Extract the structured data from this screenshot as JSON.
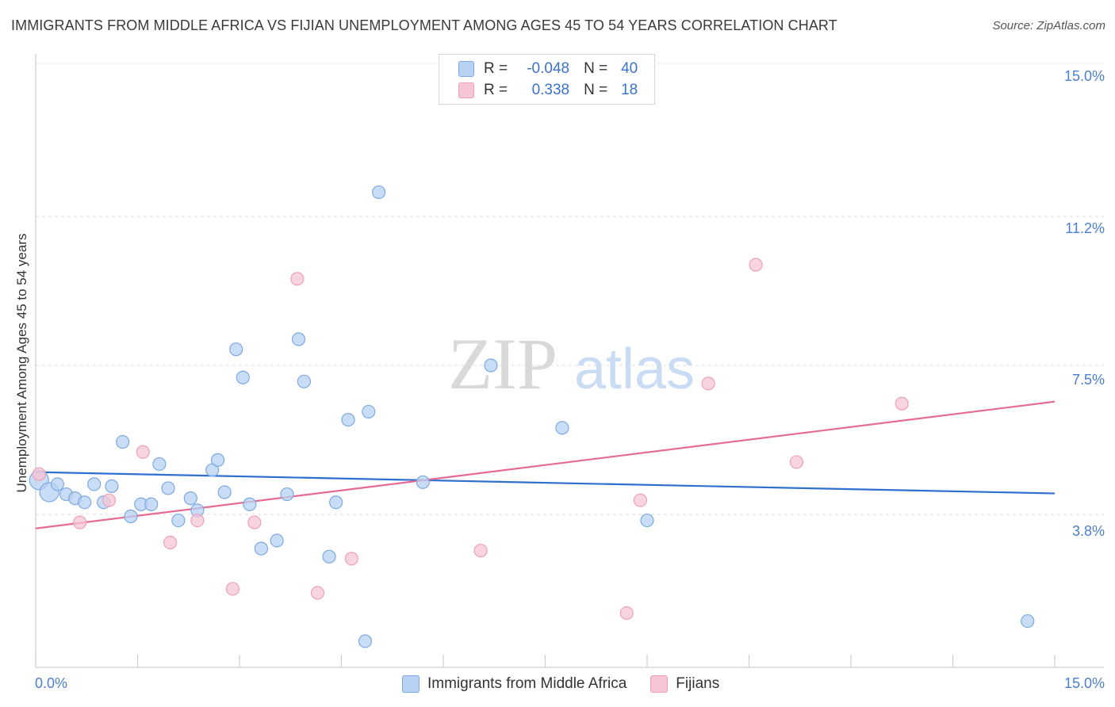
{
  "header": {
    "title": "IMMIGRANTS FROM MIDDLE AFRICA VS FIJIAN UNEMPLOYMENT AMONG AGES 45 TO 54 YEARS CORRELATION CHART",
    "source": "Source: ZipAtlas.com"
  },
  "watermark": {
    "zip": "ZIP",
    "atlas": "atlas"
  },
  "legend": {
    "series1": {
      "r_label": "R =",
      "r_value": "-0.048",
      "n_label": "N =",
      "n_value": "40"
    },
    "series2": {
      "r_label": "R =",
      "r_value": "0.338",
      "n_label": "N =",
      "n_value": "18"
    }
  },
  "bottom_legend": {
    "series1": "Immigrants from Middle Africa",
    "series2": "Fijians"
  },
  "colors": {
    "blue_fill": "#b7d2f3",
    "blue_stroke": "#7ea9e1",
    "blue_line": "#2f6fcf",
    "pink_fill": "#f6c6d6",
    "pink_stroke": "#eea0ba",
    "pink_line": "#e56a96",
    "tick_text": "#4a7fcf"
  },
  "chart_data": {
    "type": "scatter",
    "title": "IMMIGRANTS FROM MIDDLE AFRICA VS FIJIAN UNEMPLOYMENT AMONG AGES 45 TO 54 YEARS CORRELATION CHART",
    "xlabel": "",
    "ylabel": "Unemployment Among Ages 45 to 54 years",
    "xlim": [
      0,
      15
    ],
    "ylim": [
      0,
      15
    ],
    "x_tick_labels": [
      "0.0%",
      "15.0%"
    ],
    "y_ticks": [
      3.8,
      7.5,
      11.2,
      15.0
    ],
    "y_tick_labels": [
      "3.8%",
      "7.5%",
      "11.2%",
      "15.0%"
    ],
    "grid": true,
    "series": [
      {
        "name": "Immigrants from Middle Africa",
        "r": -0.048,
        "n": 40,
        "trend": {
          "x": [
            0,
            15
          ],
          "y": [
            4.85,
            4.32
          ]
        },
        "points": [
          {
            "x": 0.05,
            "y": 4.65,
            "big": true
          },
          {
            "x": 0.2,
            "y": 4.35,
            "big": true
          },
          {
            "x": 0.32,
            "y": 4.55
          },
          {
            "x": 0.45,
            "y": 4.3
          },
          {
            "x": 0.58,
            "y": 4.2
          },
          {
            "x": 0.72,
            "y": 4.1
          },
          {
            "x": 0.86,
            "y": 4.55
          },
          {
            "x": 1.0,
            "y": 4.1
          },
          {
            "x": 1.12,
            "y": 4.5
          },
          {
            "x": 1.28,
            "y": 5.6
          },
          {
            "x": 1.4,
            "y": 3.75
          },
          {
            "x": 1.55,
            "y": 4.05
          },
          {
            "x": 1.7,
            "y": 4.05
          },
          {
            "x": 1.82,
            "y": 5.05
          },
          {
            "x": 1.95,
            "y": 4.45
          },
          {
            "x": 2.1,
            "y": 3.65
          },
          {
            "x": 2.28,
            "y": 4.2
          },
          {
            "x": 2.38,
            "y": 3.9
          },
          {
            "x": 2.6,
            "y": 4.9
          },
          {
            "x": 2.68,
            "y": 5.15
          },
          {
            "x": 2.78,
            "y": 4.35
          },
          {
            "x": 2.95,
            "y": 7.9
          },
          {
            "x": 3.05,
            "y": 7.2
          },
          {
            "x": 3.15,
            "y": 4.05
          },
          {
            "x": 3.32,
            "y": 2.95
          },
          {
            "x": 3.55,
            "y": 3.15
          },
          {
            "x": 3.7,
            "y": 4.3
          },
          {
            "x": 3.87,
            "y": 8.15
          },
          {
            "x": 3.95,
            "y": 7.1
          },
          {
            "x": 4.32,
            "y": 2.75
          },
          {
            "x": 4.42,
            "y": 4.1
          },
          {
            "x": 4.6,
            "y": 6.15
          },
          {
            "x": 4.85,
            "y": 0.65
          },
          {
            "x": 4.9,
            "y": 6.35
          },
          {
            "x": 5.05,
            "y": 11.8
          },
          {
            "x": 5.7,
            "y": 4.6
          },
          {
            "x": 6.7,
            "y": 7.5
          },
          {
            "x": 7.75,
            "y": 5.95
          },
          {
            "x": 9.0,
            "y": 3.65
          },
          {
            "x": 14.6,
            "y": 1.15
          }
        ]
      },
      {
        "name": "Fijians",
        "r": 0.338,
        "n": 18,
        "trend": {
          "x": [
            0,
            15
          ],
          "y": [
            3.45,
            6.6
          ]
        },
        "points": [
          {
            "x": 0.05,
            "y": 4.8
          },
          {
            "x": 0.65,
            "y": 3.6
          },
          {
            "x": 1.08,
            "y": 4.15
          },
          {
            "x": 1.58,
            "y": 5.35
          },
          {
            "x": 1.98,
            "y": 3.1
          },
          {
            "x": 2.38,
            "y": 3.65
          },
          {
            "x": 2.9,
            "y": 1.95
          },
          {
            "x": 3.22,
            "y": 3.6
          },
          {
            "x": 3.85,
            "y": 9.65
          },
          {
            "x": 4.15,
            "y": 1.85
          },
          {
            "x": 4.65,
            "y": 2.7
          },
          {
            "x": 6.55,
            "y": 2.9
          },
          {
            "x": 8.7,
            "y": 1.35
          },
          {
            "x": 8.9,
            "y": 4.15
          },
          {
            "x": 9.9,
            "y": 7.05
          },
          {
            "x": 10.6,
            "y": 10.0
          },
          {
            "x": 11.2,
            "y": 5.1
          },
          {
            "x": 12.75,
            "y": 6.55
          }
        ]
      }
    ]
  }
}
